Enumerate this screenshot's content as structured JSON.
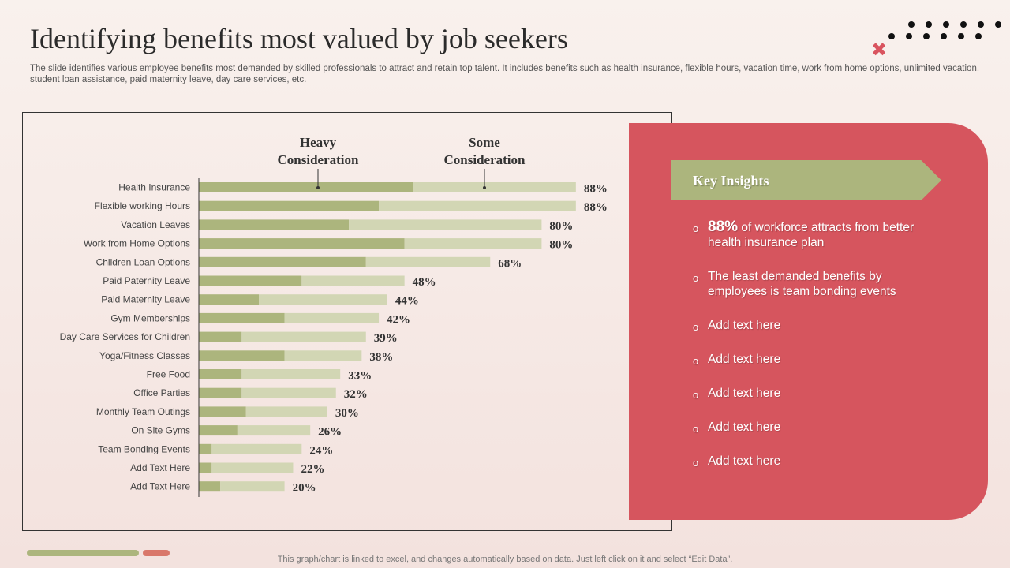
{
  "slide": {
    "title": "Identifying benefits most valued by job seekers",
    "subtitle": "The slide identifies various employee benefits most demanded by skilled professionals to attract and retain top talent. It includes benefits such as health insurance, flexible hours, vacation time, work from home options, unlimited vacation, student loan assistance, paid maternity leave, day care services, etc.",
    "footer_note": "This graph/chart is linked to excel,  and changes automatically based on data. Just left click on it and select “Edit Data”."
  },
  "colors": {
    "heavy": "#acb57d",
    "some": "#d2d6b4",
    "panel": "#d6555e",
    "accent": "#d9776a"
  },
  "chart_data": {
    "type": "bar",
    "orientation": "horizontal",
    "stacked": true,
    "unit": "%",
    "xlim": [
      0,
      100
    ],
    "categories": [
      "Health Insurance",
      "Flexible working Hours",
      "Vacation Leaves",
      "Work from Home Options",
      "Children Loan Options",
      "Paid Paternity Leave",
      "Paid Maternity Leave",
      "Gym Memberships",
      "Day Care Services for Children",
      "Yoga/Fitness Classes",
      "Free Food",
      "Office Parties",
      "Monthly Team Outings",
      "On Site Gyms",
      "Team Bonding Events",
      "Add Text Here",
      "Add Text Here"
    ],
    "series": [
      {
        "name": "Heavy Consideration",
        "values": [
          50,
          42,
          35,
          48,
          39,
          24,
          14,
          20,
          10,
          20,
          10,
          10,
          11,
          9,
          3,
          3,
          5
        ]
      },
      {
        "name": "Some Consideration",
        "values": [
          38,
          46,
          45,
          32,
          29,
          24,
          30,
          22,
          29,
          18,
          23,
          22,
          19,
          17,
          21,
          19,
          15
        ]
      }
    ],
    "totals": [
      88,
      88,
      80,
      80,
      68,
      48,
      44,
      42,
      39,
      38,
      33,
      32,
      30,
      26,
      24,
      22,
      20
    ],
    "total_labels": [
      "88%",
      "88%",
      "80%",
      "80%",
      "68%",
      "48%",
      "44%",
      "42%",
      "39%",
      "38%",
      "33%",
      "32%",
      "30%",
      "26%",
      "24%",
      "22%",
      "20%"
    ],
    "series_labels": [
      [
        "Heavy",
        "Consideration"
      ],
      [
        "Some",
        "Consideration"
      ]
    ]
  },
  "insights": {
    "title": "Key Insights",
    "items": [
      {
        "pct": "88%",
        "text": " of workforce attracts from better health insurance plan"
      },
      {
        "pct": "",
        "text": "The least demanded benefits by employees is team bonding events"
      },
      {
        "pct": "",
        "text": "Add text here"
      },
      {
        "pct": "",
        "text": "Add text here"
      },
      {
        "pct": "",
        "text": "Add text here"
      },
      {
        "pct": "",
        "text": "Add text here"
      },
      {
        "pct": "",
        "text": "Add text here"
      }
    ]
  }
}
